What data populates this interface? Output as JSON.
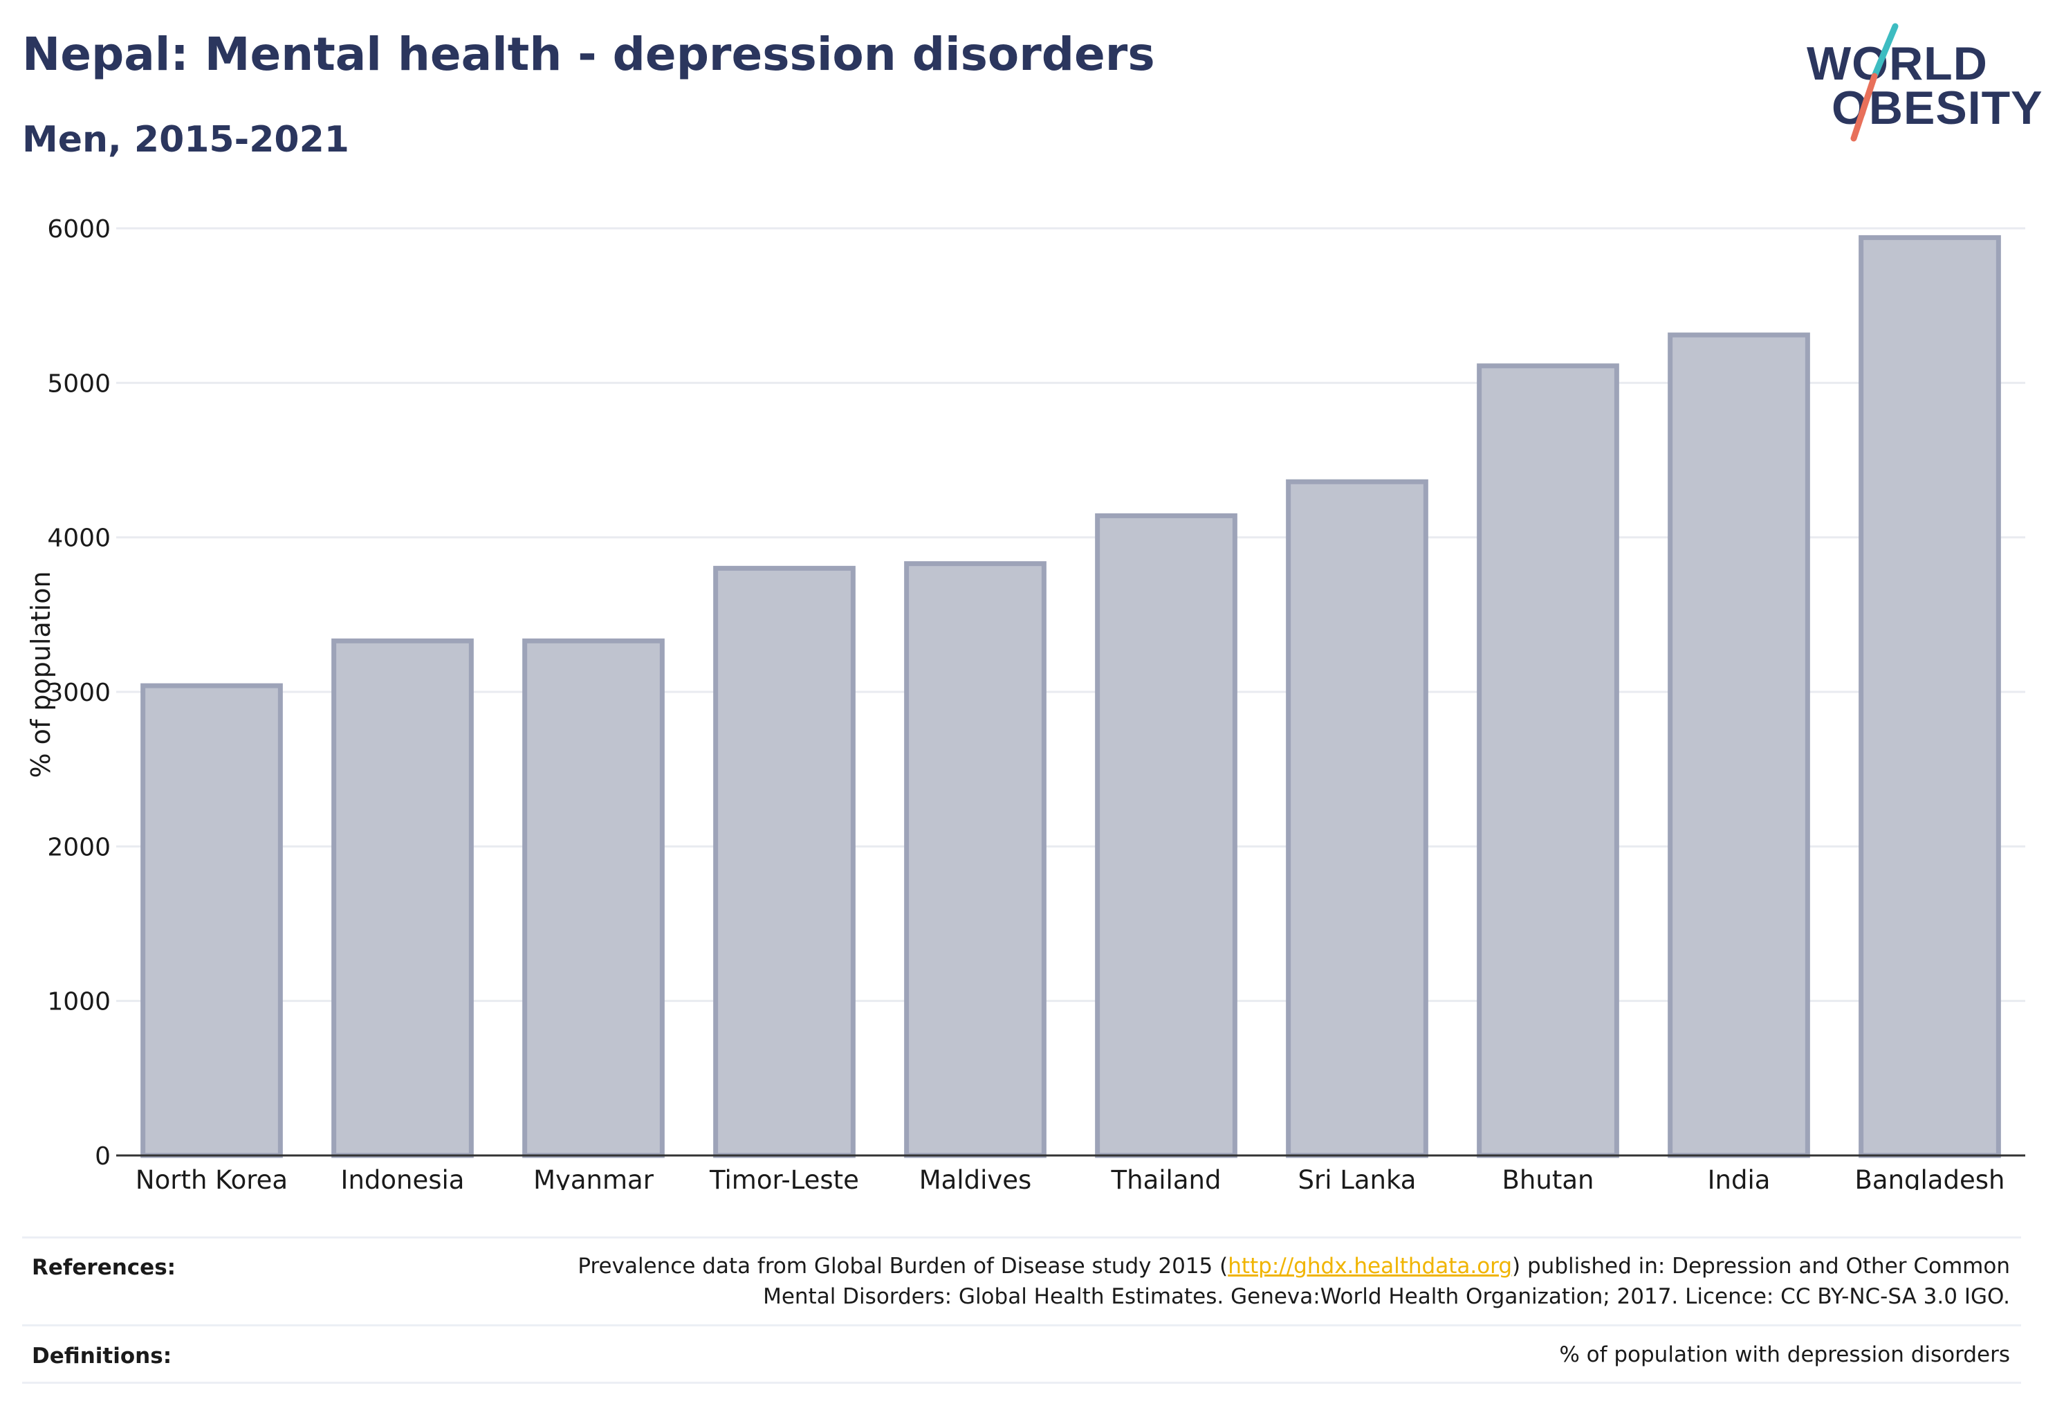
{
  "header": {
    "title": "Nepal: Mental health - depression disorders",
    "subtitle": "Men, 2015-2021"
  },
  "logo": {
    "line1": "WORLD",
    "line2": "OBESITY",
    "accent_colors": [
      "#3dbcc1",
      "#e8705a"
    ]
  },
  "chart_data": {
    "type": "bar",
    "categories": [
      "North Korea",
      "Indonesia",
      "Myanmar",
      "Timor-Leste",
      "Maldives",
      "Thailand",
      "Sri Lanka",
      "Bhutan",
      "India",
      "Bangladesh"
    ],
    "values": [
      3040,
      3330,
      3330,
      3800,
      3830,
      4140,
      4360,
      5110,
      5310,
      5940
    ],
    "ylabel": "% of population",
    "xlabel": "",
    "ylim": [
      0,
      6000
    ],
    "yticks": [
      0,
      1000,
      2000,
      3000,
      4000,
      5000,
      6000
    ],
    "grid": true,
    "bar_fill": "#bfc3cf",
    "bar_stroke": "#9da3b8",
    "grid_color": "#e9ebf0",
    "axis_color": "#333333"
  },
  "footer": {
    "references_label": "References:",
    "references_line1_pre": "Prevalence data from Global Burden of Disease study 2015 (",
    "references_link": "http://ghdx.healthdata.org",
    "references_line1_post": ") published in: Depression and Other Common",
    "references_line2": "Mental Disorders: Global Health Estimates. Geneva:World Health Organization; 2017. Licence: CC BY-NC-SA 3.0 IGO.",
    "definitions_label": "Definitions:",
    "definitions_text": "% of population with depression disorders"
  }
}
